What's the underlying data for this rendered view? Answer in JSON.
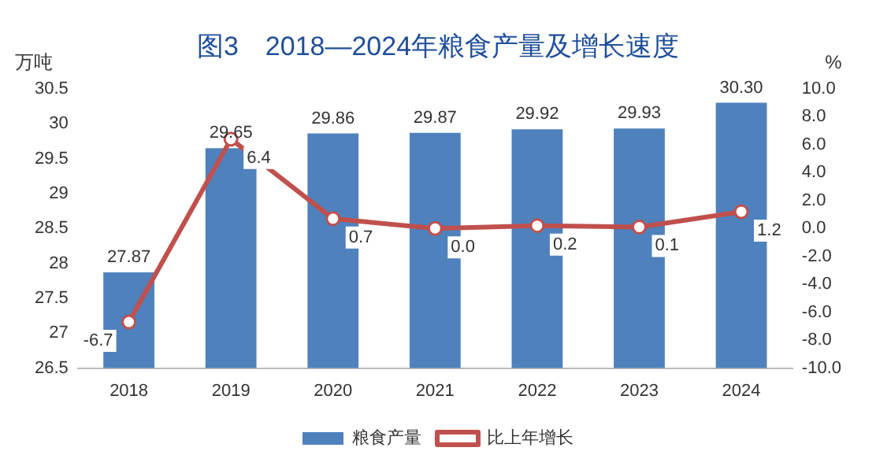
{
  "chart_data": {
    "type": "bar",
    "title": "图3　2018—2024年粮食产量及增长速度",
    "ylabel": "万吨",
    "y2label": "%",
    "categories": [
      "2018",
      "2019",
      "2020",
      "2021",
      "2022",
      "2023",
      "2024"
    ],
    "series": [
      {
        "name": "粮食产量",
        "color": "#4f81bd",
        "values": [
          27.87,
          29.65,
          29.86,
          29.87,
          29.92,
          29.93,
          30.3
        ],
        "value_labels": [
          "27.87",
          "29.65",
          "29.86",
          "29.87",
          "29.92",
          "29.93",
          "30.30"
        ]
      },
      {
        "name": "比上年增长",
        "type": "line",
        "axis": "y2",
        "color": "#c0504d",
        "marker": "circle",
        "values": [
          -6.7,
          6.4,
          0.7,
          0.0,
          0.2,
          0.1,
          1.2
        ],
        "value_labels": [
          "-6.7",
          "6.4",
          "0.7",
          "0.0",
          "0.2",
          "0.1",
          "1.2"
        ]
      }
    ],
    "ylim": [
      26.5,
      30.5
    ],
    "yticks": [
      26.5,
      27,
      27.5,
      28,
      28.5,
      29,
      29.5,
      30,
      30.5
    ],
    "y2lim": [
      -10,
      10
    ],
    "y2ticks": [
      {
        "value": -10,
        "label": "-10.0"
      },
      {
        "value": -8,
        "label": "-8.0"
      },
      {
        "value": -6,
        "label": "-6.0"
      },
      {
        "value": -4,
        "label": "-4.0"
      },
      {
        "value": -2,
        "label": "-2.0"
      },
      {
        "value": 0,
        "label": "0.0"
      },
      {
        "value": 2,
        "label": "2.0"
      },
      {
        "value": 4,
        "label": "4.0"
      },
      {
        "value": 6,
        "label": "6.0"
      },
      {
        "value": 8,
        "label": "8.0"
      },
      {
        "value": 10,
        "label": "10.0"
      }
    ],
    "grid": false,
    "legend": "bottom"
  }
}
